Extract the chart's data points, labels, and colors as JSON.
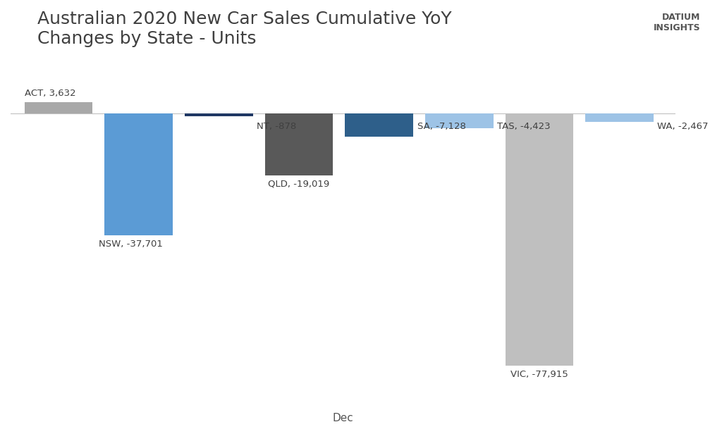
{
  "title_line1": "Australian 2020 New Car Sales Cumulative YoY",
  "title_line2": "Changes by State - Units",
  "xlabel": "Dec",
  "states": [
    "ACT",
    "NSW",
    "NT",
    "QLD",
    "SA",
    "TAS",
    "VIC",
    "WA"
  ],
  "values": [
    3632,
    -37701,
    -878,
    -19019,
    -7128,
    -4423,
    -77915,
    -2467
  ],
  "colors": [
    "#a8a8a8",
    "#5b9bd5",
    "#1f3864",
    "#595959",
    "#2e5f8a",
    "#9dc3e6",
    "#bfbfbf",
    "#9dc3e6"
  ],
  "background_color": "#ffffff",
  "label_fontsize": 9.5,
  "title_fontsize": 18,
  "xlabel_fontsize": 11,
  "ylim": [
    -90000,
    18000
  ]
}
